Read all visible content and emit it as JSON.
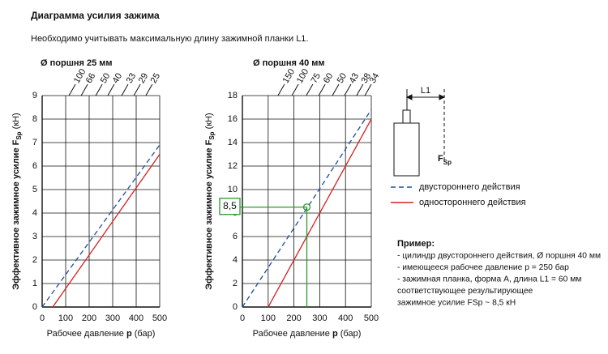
{
  "header": {
    "title": "Диаграмма усилия зажима",
    "subtitle": "Необходимо учитывать максимальную длину зажимной планки L1."
  },
  "chart_data": [
    {
      "type": "line",
      "title": "Ø поршня 25 мм",
      "ylabel": [
        "Эффективное зажимное усилие F",
        "Sp",
        " (кН)"
      ],
      "xlabel": [
        "Рабочее давление ",
        "p",
        " (бар)"
      ],
      "xlim": [
        0,
        500
      ],
      "xticks": [
        0,
        100,
        200,
        300,
        400,
        500
      ],
      "ylim": [
        0,
        9
      ],
      "yticks": [
        0,
        1,
        2,
        3,
        4,
        5,
        6,
        7,
        8,
        9
      ],
      "x2ticks": [
        {
          "value": 114,
          "label": "100"
        },
        {
          "value": 166,
          "label": "66"
        },
        {
          "value": 228,
          "label": "50"
        },
        {
          "value": 279,
          "label": "40"
        },
        {
          "value": 338,
          "label": "33"
        },
        {
          "value": 390,
          "label": "29"
        },
        {
          "value": 441,
          "label": "25"
        }
      ],
      "grid": true,
      "series": [
        {
          "color": "#1f4fa0",
          "dashed": true,
          "x": [
            0,
            500
          ],
          "values": [
            0,
            6.9
          ]
        },
        {
          "color": "#d42020",
          "dashed": false,
          "x": [
            45,
            500
          ],
          "values": [
            0,
            6.5
          ]
        }
      ]
    },
    {
      "type": "line",
      "title": "Ø поршня 40 мм",
      "ylabel": [
        "Эффективное зажимное усилие F",
        "Sp",
        " (кН)"
      ],
      "xlabel": [
        "Рабочее давление ",
        "p",
        " (бар)"
      ],
      "xlim": [
        0,
        500
      ],
      "xticks": [
        0,
        100,
        200,
        300,
        400,
        500
      ],
      "ylim": [
        0,
        18
      ],
      "yticks": [
        0,
        2,
        4,
        6,
        8,
        10,
        12,
        14,
        16,
        18
      ],
      "x2ticks": [
        {
          "value": 138,
          "label": "150"
        },
        {
          "value": 192,
          "label": "100"
        },
        {
          "value": 248,
          "label": "75"
        },
        {
          "value": 296,
          "label": "60"
        },
        {
          "value": 349,
          "label": "50"
        },
        {
          "value": 396,
          "label": "43"
        },
        {
          "value": 443,
          "label": "38"
        },
        {
          "value": 475,
          "label": "34"
        }
      ],
      "grid": true,
      "series": [
        {
          "color": "#1f4fa0",
          "dashed": true,
          "x": [
            0,
            500
          ],
          "values": [
            0,
            16.8
          ]
        },
        {
          "color": "#d42020",
          "dashed": false,
          "x": [
            100,
            500
          ],
          "values": [
            0,
            16
          ]
        }
      ],
      "annotation": {
        "label": "8,5",
        "x": 250,
        "y": 8.5,
        "color": "#2a9a2a"
      }
    }
  ],
  "legend": [
    {
      "name": "двустороннего действия",
      "color": "#1f4fa0",
      "dashed": true
    },
    {
      "name": "одностороннего действия",
      "color": "#d42020",
      "dashed": false
    }
  ],
  "figure": {
    "dimension_label": "L1",
    "force_label": "F",
    "force_sub": "Sp"
  },
  "example": {
    "title": "Пример:",
    "lines": [
      "- цилиндр двустороннего действия, Ø поршня 40 мм",
      "- имеющееся рабочее давление p = 250 бар",
      "- зажимная планка, форма A, длина L1 = 60 мм",
      "соответствующее результирующее",
      "зажимное усилие FSp ~ 8,5 кН"
    ]
  }
}
